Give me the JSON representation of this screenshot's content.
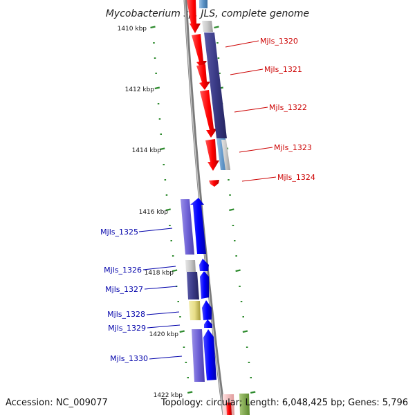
{
  "title": "Mycobacterium sp. JLS, complete genome",
  "accession": "Accession: NC_009077",
  "topology": "Topology: circular; Length: 6,048,425 bp; Genes: 5,796",
  "colors": {
    "forward_cds": "#ff0000",
    "reverse_cds": "#0000ff",
    "forward_label": "#cc0000",
    "reverse_label": "#0000aa",
    "tick": "#2e8b2e",
    "backbone": "#888888"
  },
  "ticks": [
    "1410 kbp",
    "1412 kbp",
    "1414 kbp",
    "1416 kbp",
    "1418 kbp",
    "1420 kbp",
    "1422 kbp"
  ],
  "forward_genes": [
    {
      "label": "Mjls_1320"
    },
    {
      "label": "Mjls_1321"
    },
    {
      "label": "Mjls_1322"
    },
    {
      "label": "Mjls_1323"
    },
    {
      "label": "Mjls_1324"
    }
  ],
  "reverse_genes": [
    {
      "label": "Mjls_1325"
    },
    {
      "label": "Mjls_1326"
    },
    {
      "label": "Mjls_1327"
    },
    {
      "label": "Mjls_1328"
    },
    {
      "label": "Mjls_1329"
    },
    {
      "label": "Mjls_1330"
    }
  ]
}
